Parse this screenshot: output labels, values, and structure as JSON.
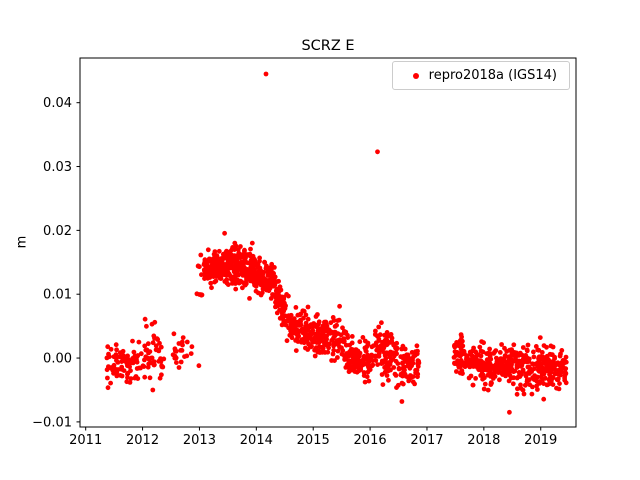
{
  "chart_data": {
    "type": "scatter",
    "title": "SCRZ E",
    "xlabel": "",
    "ylabel": "m",
    "xlim": [
      2010.9,
      2019.62
    ],
    "ylim": [
      -0.0108,
      0.047
    ],
    "xticks": [
      2011,
      2012,
      2013,
      2014,
      2015,
      2016,
      2017,
      2018,
      2019
    ],
    "yticks": [
      -0.01,
      0.0,
      0.01,
      0.02,
      0.03,
      0.04
    ],
    "grid": false,
    "legend": {
      "label": "repro2018a (IGS14)",
      "position": "upper right"
    },
    "series": [
      {
        "name": "repro2018a (IGS14)",
        "color": "#ff0000",
        "marker": "dot",
        "segments": [
          {
            "x0": 2011.37,
            "x1": 2011.98,
            "y0": -0.001,
            "y1": -0.0008,
            "spread": 0.0016,
            "n": 80
          },
          {
            "x0": 2012.0,
            "x1": 2012.38,
            "y0": 0.0005,
            "y1": 0.0005,
            "spread": 0.0024,
            "n": 48
          },
          {
            "x0": 2012.52,
            "x1": 2012.87,
            "y0": 0.001,
            "y1": 0.001,
            "spread": 0.0014,
            "n": 22
          },
          {
            "x0": 2012.95,
            "x1": 2013.06,
            "y0": 0.012,
            "y1": 0.0125,
            "spread": 0.002,
            "n": 10
          },
          {
            "x0": 2013.08,
            "x1": 2013.55,
            "y0": 0.014,
            "y1": 0.0146,
            "spread": 0.0013,
            "n": 170
          },
          {
            "x0": 2013.55,
            "x1": 2014.0,
            "y0": 0.0146,
            "y1": 0.0134,
            "spread": 0.0015,
            "n": 170
          },
          {
            "x0": 2014.0,
            "x1": 2014.33,
            "y0": 0.0131,
            "y1": 0.0119,
            "spread": 0.0013,
            "n": 110
          },
          {
            "x0": 2014.33,
            "x1": 2014.6,
            "y0": 0.0095,
            "y1": 0.006,
            "spread": 0.0015,
            "n": 70
          },
          {
            "x0": 2014.6,
            "x1": 2015.05,
            "y0": 0.005,
            "y1": 0.0035,
            "spread": 0.0014,
            "n": 110
          },
          {
            "x0": 2015.05,
            "x1": 2015.55,
            "y0": 0.0035,
            "y1": 0.0025,
            "spread": 0.0016,
            "n": 120
          },
          {
            "x0": 2015.55,
            "x1": 2016.0,
            "y0": 0.0005,
            "y1": -0.0005,
            "spread": 0.0017,
            "n": 110
          },
          {
            "x0": 2016.0,
            "x1": 2016.45,
            "y0": 0.0008,
            "y1": 0.0008,
            "spread": 0.0018,
            "n": 90
          },
          {
            "x0": 2016.45,
            "x1": 2016.88,
            "y0": -0.001,
            "y1": -0.0014,
            "spread": 0.0018,
            "n": 80
          },
          {
            "x0": 2017.45,
            "x1": 2017.8,
            "y0": 0.0008,
            "y1": 0.0002,
            "spread": 0.0016,
            "n": 70
          },
          {
            "x0": 2017.8,
            "x1": 2018.4,
            "y0": -0.001,
            "y1": -0.0014,
            "spread": 0.0016,
            "n": 150
          },
          {
            "x0": 2018.4,
            "x1": 2019.45,
            "y0": -0.0014,
            "y1": -0.0016,
            "spread": 0.0016,
            "n": 260
          }
        ],
        "outliers": [
          [
            2014.17,
            0.0445
          ],
          [
            2016.13,
            0.0323
          ],
          [
            2013.93,
            0.018
          ],
          [
            2012.99,
            -0.0012
          ],
          [
            2016.56,
            -0.0068
          ],
          [
            2018.45,
            -0.0085
          ]
        ]
      }
    ]
  }
}
